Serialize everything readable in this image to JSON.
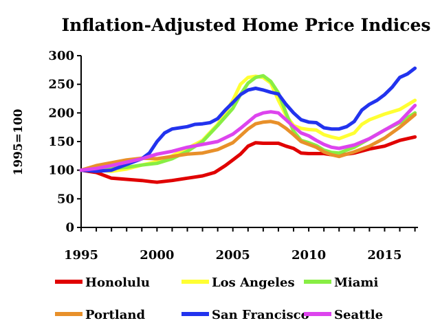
{
  "chart_data": {
    "type": "line",
    "title": "Inflation-Adjusted Home Price Indices",
    "ylabel": "1995=100",
    "xlabel": "",
    "xlim": [
      1995,
      2017.2
    ],
    "ylim": [
      0,
      300
    ],
    "xticks": [
      1995,
      2000,
      2005,
      2010,
      2015
    ],
    "yticks": [
      0,
      50,
      100,
      150,
      200,
      250,
      300
    ],
    "grid": false,
    "legend": "bottom",
    "series": [
      {
        "name": "Honolulu",
        "color": "#e00000",
        "points": [
          [
            1995,
            100
          ],
          [
            1996,
            96
          ],
          [
            1997,
            86
          ],
          [
            1998,
            84
          ],
          [
            1999,
            82
          ],
          [
            1999.6,
            80
          ],
          [
            2000,
            79
          ],
          [
            2001,
            82
          ],
          [
            2002,
            86
          ],
          [
            2003,
            90
          ],
          [
            2003.8,
            96
          ],
          [
            2004.5,
            108
          ],
          [
            2005,
            118
          ],
          [
            2005.5,
            128
          ],
          [
            2006,
            142
          ],
          [
            2006.5,
            148
          ],
          [
            2007,
            147
          ],
          [
            2008,
            147
          ],
          [
            2008.5,
            142
          ],
          [
            2009,
            138
          ],
          [
            2009.5,
            130
          ],
          [
            2010,
            129
          ],
          [
            2011,
            129
          ],
          [
            2011.5,
            127
          ],
          [
            2012,
            126
          ],
          [
            2013,
            130
          ],
          [
            2014,
            137
          ],
          [
            2015,
            142
          ],
          [
            2016,
            152
          ],
          [
            2017,
            158
          ]
        ]
      },
      {
        "name": "Los Angeles",
        "color": "#ffff33",
        "points": [
          [
            1995,
            100
          ],
          [
            1996,
            100
          ],
          [
            1997,
            98
          ],
          [
            1998,
            102
          ],
          [
            1999,
            109
          ],
          [
            2000,
            115
          ],
          [
            2001,
            125
          ],
          [
            2002,
            138
          ],
          [
            2003,
            152
          ],
          [
            2004,
            180
          ],
          [
            2004.5,
            200
          ],
          [
            2005,
            222
          ],
          [
            2005.5,
            250
          ],
          [
            2006,
            262
          ],
          [
            2006.5,
            264
          ],
          [
            2007,
            262
          ],
          [
            2007.5,
            252
          ],
          [
            2008,
            222
          ],
          [
            2008.5,
            196
          ],
          [
            2009,
            178
          ],
          [
            2009.5,
            173
          ],
          [
            2010,
            171
          ],
          [
            2010.5,
            170
          ],
          [
            2011,
            162
          ],
          [
            2011.5,
            158
          ],
          [
            2012,
            155
          ],
          [
            2013,
            165
          ],
          [
            2013.5,
            180
          ],
          [
            2014,
            188
          ],
          [
            2015,
            198
          ],
          [
            2016,
            206
          ],
          [
            2017,
            222
          ]
        ]
      },
      {
        "name": "Miami",
        "color": "#88ee44",
        "points": [
          [
            1995,
            100
          ],
          [
            1996,
            102
          ],
          [
            1997,
            103
          ],
          [
            1998,
            105
          ],
          [
            1999,
            109
          ],
          [
            2000,
            112
          ],
          [
            2001,
            120
          ],
          [
            2002,
            133
          ],
          [
            2003,
            150
          ],
          [
            2004,
            178
          ],
          [
            2004.5,
            193
          ],
          [
            2005,
            208
          ],
          [
            2005.5,
            232
          ],
          [
            2006,
            252
          ],
          [
            2006.5,
            262
          ],
          [
            2007,
            265
          ],
          [
            2007.5,
            255
          ],
          [
            2008,
            235
          ],
          [
            2008.5,
            200
          ],
          [
            2009,
            168
          ],
          [
            2009.5,
            152
          ],
          [
            2010,
            148
          ],
          [
            2010.5,
            143
          ],
          [
            2011,
            135
          ],
          [
            2011.5,
            131
          ],
          [
            2012,
            130
          ],
          [
            2013,
            140
          ],
          [
            2014,
            155
          ],
          [
            2015,
            170
          ],
          [
            2016,
            183
          ],
          [
            2017,
            200
          ]
        ]
      },
      {
        "name": "Portland",
        "color": "#e8902a",
        "points": [
          [
            1995,
            100
          ],
          [
            1996,
            108
          ],
          [
            1997,
            113
          ],
          [
            1998,
            118
          ],
          [
            1999,
            121
          ],
          [
            2000,
            120
          ],
          [
            2001,
            124
          ],
          [
            2002,
            128
          ],
          [
            2003,
            130
          ],
          [
            2004,
            136
          ],
          [
            2005,
            148
          ],
          [
            2005.5,
            160
          ],
          [
            2006,
            172
          ],
          [
            2006.5,
            181
          ],
          [
            2007,
            184
          ],
          [
            2007.5,
            185
          ],
          [
            2008,
            182
          ],
          [
            2008.5,
            173
          ],
          [
            2009,
            162
          ],
          [
            2009.5,
            150
          ],
          [
            2010,
            145
          ],
          [
            2010.5,
            140
          ],
          [
            2011,
            132
          ],
          [
            2011.5,
            127
          ],
          [
            2012,
            124
          ],
          [
            2013,
            132
          ],
          [
            2014,
            142
          ],
          [
            2015,
            156
          ],
          [
            2016,
            175
          ],
          [
            2017,
            197
          ]
        ]
      },
      {
        "name": "San Francisco",
        "color": "#2233ee",
        "points": [
          [
            1995,
            100
          ],
          [
            1996,
            98
          ],
          [
            1997,
            100
          ],
          [
            1998,
            110
          ],
          [
            1999,
            120
          ],
          [
            1999.5,
            130
          ],
          [
            2000,
            150
          ],
          [
            2000.5,
            165
          ],
          [
            2001,
            172
          ],
          [
            2001.5,
            174
          ],
          [
            2002,
            176
          ],
          [
            2002.5,
            180
          ],
          [
            2003,
            181
          ],
          [
            2003.5,
            183
          ],
          [
            2004,
            190
          ],
          [
            2004.5,
            205
          ],
          [
            2005,
            218
          ],
          [
            2005.5,
            232
          ],
          [
            2006,
            240
          ],
          [
            2006.5,
            243
          ],
          [
            2007,
            240
          ],
          [
            2007.5,
            236
          ],
          [
            2008,
            233
          ],
          [
            2008.5,
            215
          ],
          [
            2009,
            200
          ],
          [
            2009.5,
            188
          ],
          [
            2010,
            184
          ],
          [
            2010.5,
            183
          ],
          [
            2011,
            174
          ],
          [
            2011.5,
            172
          ],
          [
            2012,
            172
          ],
          [
            2012.5,
            176
          ],
          [
            2013,
            185
          ],
          [
            2013.5,
            205
          ],
          [
            2014,
            215
          ],
          [
            2014.5,
            222
          ],
          [
            2015,
            232
          ],
          [
            2015.5,
            245
          ],
          [
            2016,
            262
          ],
          [
            2016.5,
            268
          ],
          [
            2017,
            278
          ]
        ]
      },
      {
        "name": "Seattle",
        "color": "#dd44ee",
        "points": [
          [
            1995,
            100
          ],
          [
            1996,
            103
          ],
          [
            1997,
            108
          ],
          [
            1998,
            114
          ],
          [
            1999,
            120
          ],
          [
            2000,
            128
          ],
          [
            2001,
            133
          ],
          [
            2002,
            140
          ],
          [
            2003,
            145
          ],
          [
            2004,
            150
          ],
          [
            2005,
            163
          ],
          [
            2005.5,
            173
          ],
          [
            2006,
            184
          ],
          [
            2006.5,
            195
          ],
          [
            2007,
            200
          ],
          [
            2007.5,
            202
          ],
          [
            2008,
            200
          ],
          [
            2008.5,
            188
          ],
          [
            2009,
            176
          ],
          [
            2009.5,
            165
          ],
          [
            2010,
            160
          ],
          [
            2010.5,
            152
          ],
          [
            2011,
            145
          ],
          [
            2011.5,
            140
          ],
          [
            2012,
            138
          ],
          [
            2013,
            144
          ],
          [
            2014,
            155
          ],
          [
            2015,
            170
          ],
          [
            2016,
            185
          ],
          [
            2017,
            213
          ]
        ]
      }
    ]
  }
}
